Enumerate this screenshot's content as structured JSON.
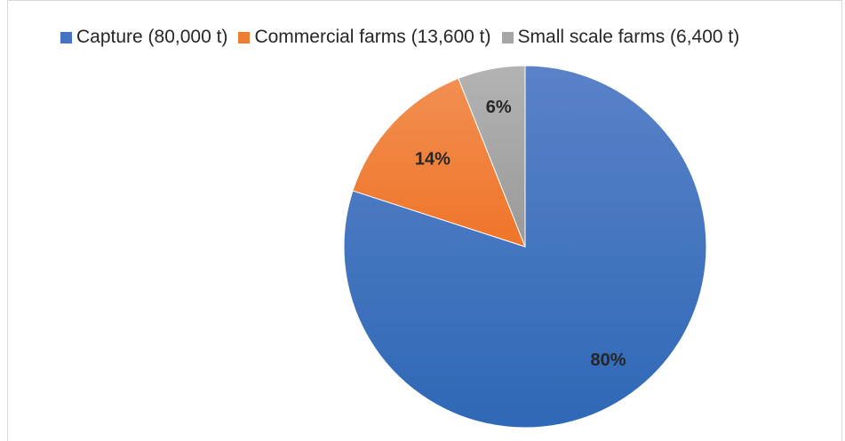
{
  "chart_data": {
    "type": "pie",
    "series": [
      {
        "name": "Capture (80,000 t)",
        "value": 80,
        "label": "80%",
        "color": "#4472C4"
      },
      {
        "name": "Commercial farms (13,600 t)",
        "value": 14,
        "label": "14%",
        "color": "#ED7D31"
      },
      {
        "name": "Small scale farms (6,400 t)",
        "value": 6,
        "label": "6%",
        "color": "#A5A5A5"
      }
    ],
    "legend_position": "top"
  }
}
